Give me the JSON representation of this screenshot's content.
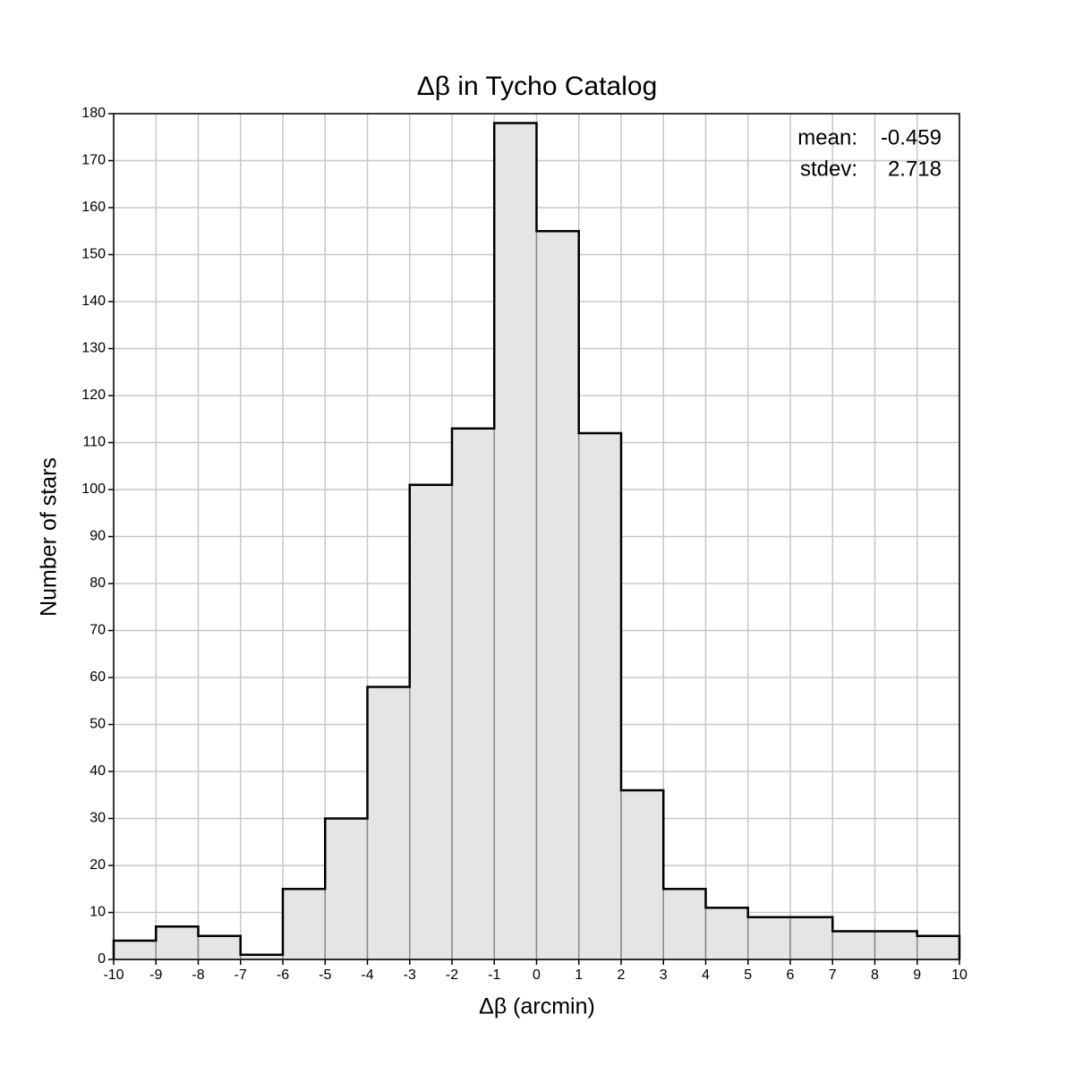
{
  "chart_data": {
    "type": "histogram",
    "title": "Δβ in Tycho Catalog",
    "x_label": "Δβ (arcmin)",
    "y_label": "Number of stars",
    "bins": [
      -10,
      -9,
      -8,
      -7,
      -6,
      -5,
      -4,
      -3,
      -2,
      -1,
      0,
      1,
      2,
      3,
      4,
      5,
      6,
      7,
      8,
      9,
      10
    ],
    "values": [
      4,
      7,
      5,
      1,
      15,
      30,
      58,
      101,
      113,
      178,
      155,
      112,
      36,
      15,
      11,
      9,
      9,
      6,
      6,
      5
    ],
    "color": "#e5e5e5",
    "xlim": [
      -10,
      10
    ],
    "xticks": [
      -10,
      -9,
      -8,
      -7,
      -6,
      -5,
      -4,
      -3,
      -2,
      -1,
      0,
      1,
      2,
      3,
      4,
      5,
      6,
      7,
      8,
      9,
      10
    ],
    "ylim": [
      0,
      180
    ],
    "yticks": [
      0,
      10,
      20,
      30,
      40,
      50,
      60,
      70,
      80,
      90,
      100,
      110,
      120,
      130,
      140,
      150,
      160,
      170,
      180
    ],
    "grid": true,
    "annotations": [
      {
        "label": "mean:",
        "value": -0.459
      },
      {
        "label": "stdev:",
        "value": 2.718
      }
    ]
  }
}
